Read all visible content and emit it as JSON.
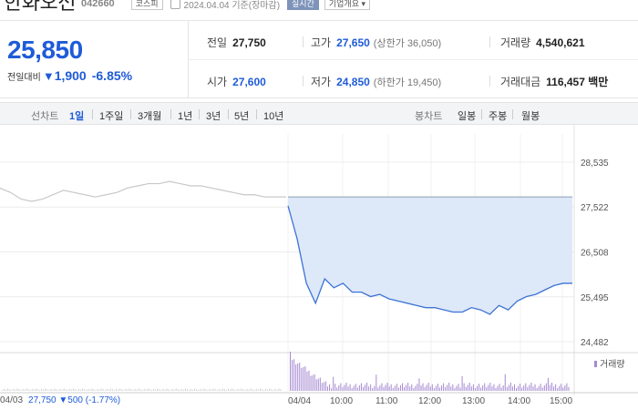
{
  "header": {
    "stock_name": "한화오션",
    "stock_code": "042660",
    "market": "코스피",
    "as_of": "2024.04.04 기준(장마감)",
    "realtime_btn": "실시간",
    "company_btn": "기업개요 ▾"
  },
  "quote": {
    "price": "25,850",
    "change_label": "전일대비",
    "change_arrow": "▼",
    "change": "1,900",
    "change_pct": "-6.85%"
  },
  "stats": {
    "prev_close_label": "전일",
    "prev_close": "27,750",
    "high_label": "고가",
    "high": "27,650",
    "upper_limit": "(상한가 36,050)",
    "volume_label": "거래량",
    "volume": "4,540,621",
    "open_label": "시가",
    "open": "27,600",
    "low_label": "저가",
    "low": "24,850",
    "lower_limit": "(하한가 19,450)",
    "amount_label": "거래대금",
    "amount": "116,457 백만"
  },
  "tabs": {
    "line_chart": "선차트",
    "periods": [
      "1일",
      "1주일",
      "3개월",
      "1년",
      "3년",
      "5년",
      "10년"
    ],
    "candle_chart": "봉차트",
    "candles": [
      "일봉",
      "주봉",
      "월봉"
    ]
  },
  "chart_data": {
    "type": "line",
    "y_ticks": [
      "28,535",
      "27,522",
      "26,508",
      "25,495",
      "24,482"
    ],
    "y_values": [
      28535,
      27522,
      26508,
      25495,
      24482
    ],
    "x_ticks": [
      "04/03",
      "04/04",
      "10:00",
      "11:00",
      "12:00",
      "13:00",
      "14:00",
      "15:00"
    ],
    "prev_close_ref": 27750,
    "volume_label": "거래량",
    "series": [
      {
        "x": "04/03",
        "values": [
          27950,
          27850,
          27700,
          27650,
          27700,
          27800,
          27900,
          27850,
          27800,
          27750,
          27800,
          27850,
          27950,
          28000,
          28050,
          28050,
          28100,
          28050,
          28000,
          28000,
          27950,
          27900,
          27850,
          27800,
          27800,
          27750,
          27750,
          27750
        ]
      },
      {
        "x": "04/04",
        "values": [
          27550,
          26800,
          25800,
          25350,
          25900,
          25700,
          25800,
          25600,
          25600,
          25500,
          25550,
          25450,
          25400,
          25350,
          25300,
          25250,
          25250,
          25200,
          25150,
          25150,
          25250,
          25200,
          25100,
          25300,
          25200,
          25400,
          25500,
          25550,
          25650,
          25750,
          25800,
          25800
        ]
      }
    ]
  },
  "footer": {
    "date": "04/03",
    "price": "27,750 ▼500 (-1.77%)"
  }
}
